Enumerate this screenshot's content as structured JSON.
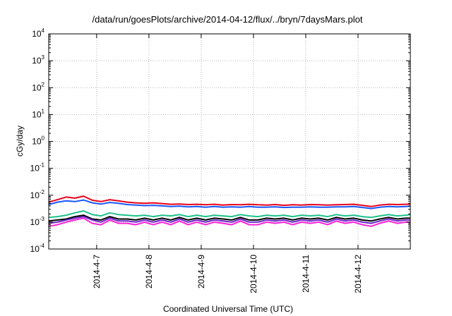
{
  "chart_data": {
    "type": "line",
    "title": "/data/run/goesPlots/archive/2014-04-12/flux/../bryn/7daysMars.plot",
    "xlabel": "Coordinated Universal Time (UTC)",
    "ylabel": "cGy/day",
    "yscale": "log",
    "ylim": [
      0.0001,
      10000
    ],
    "y_ticks": [
      {
        "base": "10",
        "exp": "-4",
        "value": 0.0001
      },
      {
        "base": "10",
        "exp": "-3",
        "value": 0.001
      },
      {
        "base": "10",
        "exp": "-2",
        "value": 0.01
      },
      {
        "base": "10",
        "exp": "-1",
        "value": 0.1
      },
      {
        "base": "10",
        "exp": "0",
        "value": 1
      },
      {
        "base": "10",
        "exp": "1",
        "value": 10
      },
      {
        "base": "10",
        "exp": "2",
        "value": 100
      },
      {
        "base": "10",
        "exp": "3",
        "value": 1000
      },
      {
        "base": "10",
        "exp": "4",
        "value": 10000
      }
    ],
    "xlim": [
      "2014-04-06T02:00",
      "2014-04-13T00:00"
    ],
    "x_ticks": [
      {
        "label": "2014-4-7",
        "value": "2014-04-07T00:00"
      },
      {
        "label": "2014-4-8",
        "value": "2014-04-08T00:00"
      },
      {
        "label": "2014-4-9",
        "value": "2014-04-09T00:00"
      },
      {
        "label": "2014-4-10",
        "value": "2014-04-10T00:00"
      },
      {
        "label": "2014-4-11",
        "value": "2014-04-11T00:00"
      },
      {
        "label": "2014-4-12",
        "value": "2014-04-12T00:00"
      }
    ],
    "grid": true,
    "x": [
      "2014-04-06T02:00",
      "2014-04-06T06:00",
      "2014-04-06T10:00",
      "2014-04-06T14:00",
      "2014-04-06T18:00",
      "2014-04-06T22:00",
      "2014-04-07T02:00",
      "2014-04-07T06:00",
      "2014-04-07T10:00",
      "2014-04-07T14:00",
      "2014-04-07T18:00",
      "2014-04-07T22:00",
      "2014-04-08T02:00",
      "2014-04-08T06:00",
      "2014-04-08T10:00",
      "2014-04-08T14:00",
      "2014-04-08T18:00",
      "2014-04-08T22:00",
      "2014-04-09T02:00",
      "2014-04-09T06:00",
      "2014-04-09T10:00",
      "2014-04-09T14:00",
      "2014-04-09T18:00",
      "2014-04-09T22:00",
      "2014-04-10T02:00",
      "2014-04-10T06:00",
      "2014-04-10T10:00",
      "2014-04-10T14:00",
      "2014-04-10T18:00",
      "2014-04-10T22:00",
      "2014-04-11T02:00",
      "2014-04-11T06:00",
      "2014-04-11T10:00",
      "2014-04-11T14:00",
      "2014-04-11T18:00",
      "2014-04-11T22:00",
      "2014-04-12T02:00",
      "2014-04-12T06:00",
      "2014-04-12T10:00",
      "2014-04-12T14:00",
      "2014-04-12T18:00",
      "2014-04-12T22:00",
      "2014-04-13T00:00"
    ],
    "series": [
      {
        "color": "#e8001c",
        "values": [
          0.0055,
          0.0068,
          0.0085,
          0.0078,
          0.0092,
          0.0065,
          0.0058,
          0.0068,
          0.0062,
          0.0055,
          0.0052,
          0.005,
          0.0052,
          0.0049,
          0.0046,
          0.0047,
          0.0045,
          0.0046,
          0.0044,
          0.0046,
          0.0043,
          0.0045,
          0.0044,
          0.0046,
          0.0044,
          0.0043,
          0.0045,
          0.0042,
          0.0044,
          0.0043,
          0.0045,
          0.0044,
          0.0043,
          0.0044,
          0.0045,
          0.0046,
          0.0042,
          0.0038,
          0.0043,
          0.0046,
          0.0045,
          0.0046,
          0.0047
        ]
      },
      {
        "color": "#1a58ff",
        "values": [
          0.0045,
          0.0055,
          0.0062,
          0.0058,
          0.0066,
          0.0052,
          0.0047,
          0.0054,
          0.005,
          0.0045,
          0.0043,
          0.0041,
          0.0042,
          0.004,
          0.0038,
          0.0039,
          0.0037,
          0.0038,
          0.0036,
          0.0038,
          0.0036,
          0.0037,
          0.0036,
          0.0038,
          0.0036,
          0.0036,
          0.0037,
          0.0035,
          0.0036,
          0.0036,
          0.0037,
          0.0036,
          0.0036,
          0.0037,
          0.0037,
          0.0038,
          0.0035,
          0.0032,
          0.0036,
          0.0038,
          0.0037,
          0.0038,
          0.0039
        ]
      },
      {
        "color": "#1ec08a",
        "values": [
          0.0015,
          0.0016,
          0.0018,
          0.0022,
          0.0026,
          0.0019,
          0.0017,
          0.0022,
          0.0019,
          0.0018,
          0.0017,
          0.0018,
          0.0016,
          0.0018,
          0.0017,
          0.0019,
          0.0016,
          0.0018,
          0.0016,
          0.0018,
          0.0017,
          0.0016,
          0.0019,
          0.0017,
          0.0016,
          0.0018,
          0.0017,
          0.0018,
          0.0016,
          0.0018,
          0.0017,
          0.0018,
          0.0016,
          0.0019,
          0.0017,
          0.0018,
          0.0016,
          0.0015,
          0.0017,
          0.0019,
          0.0017,
          0.0018,
          0.0019
        ]
      },
      {
        "color": "#000000",
        "values": [
          0.0011,
          0.0012,
          0.0013,
          0.0016,
          0.0018,
          0.0013,
          0.0012,
          0.0016,
          0.0013,
          0.0013,
          0.0012,
          0.0014,
          0.0012,
          0.0014,
          0.0012,
          0.0015,
          0.0012,
          0.0014,
          0.0012,
          0.0014,
          0.0013,
          0.0012,
          0.0015,
          0.0012,
          0.0012,
          0.0014,
          0.0013,
          0.0014,
          0.0012,
          0.0014,
          0.0013,
          0.0014,
          0.0012,
          0.0015,
          0.0013,
          0.0014,
          0.0012,
          0.0011,
          0.0013,
          0.0015,
          0.0013,
          0.0014,
          0.0014
        ]
      },
      {
        "color": "#6d24c8",
        "values": [
          0.0009,
          0.001,
          0.0012,
          0.0014,
          0.0016,
          0.0012,
          0.001,
          0.0014,
          0.0011,
          0.0011,
          0.001,
          0.0012,
          0.001,
          0.0012,
          0.001,
          0.0013,
          0.001,
          0.0012,
          0.001,
          0.0012,
          0.0011,
          0.001,
          0.0013,
          0.001,
          0.001,
          0.0012,
          0.0011,
          0.0012,
          0.001,
          0.0012,
          0.0011,
          0.0012,
          0.001,
          0.0013,
          0.0011,
          0.0012,
          0.001,
          0.0009,
          0.0011,
          0.0013,
          0.0011,
          0.0012,
          0.0012
        ]
      },
      {
        "color": "#ff20d8",
        "values": [
          0.0007,
          0.0008,
          0.001,
          0.0012,
          0.0014,
          0.0009,
          0.0008,
          0.0012,
          0.0009,
          0.0009,
          0.0008,
          0.001,
          0.0008,
          0.001,
          0.0008,
          0.0011,
          0.0008,
          0.001,
          0.0008,
          0.001,
          0.0009,
          0.0008,
          0.0011,
          0.0008,
          0.0008,
          0.001,
          0.0009,
          0.001,
          0.0008,
          0.001,
          0.0009,
          0.001,
          0.0008,
          0.0011,
          0.0009,
          0.001,
          0.0008,
          0.0007,
          0.0009,
          0.0011,
          0.0009,
          0.001,
          0.001
        ]
      }
    ]
  }
}
